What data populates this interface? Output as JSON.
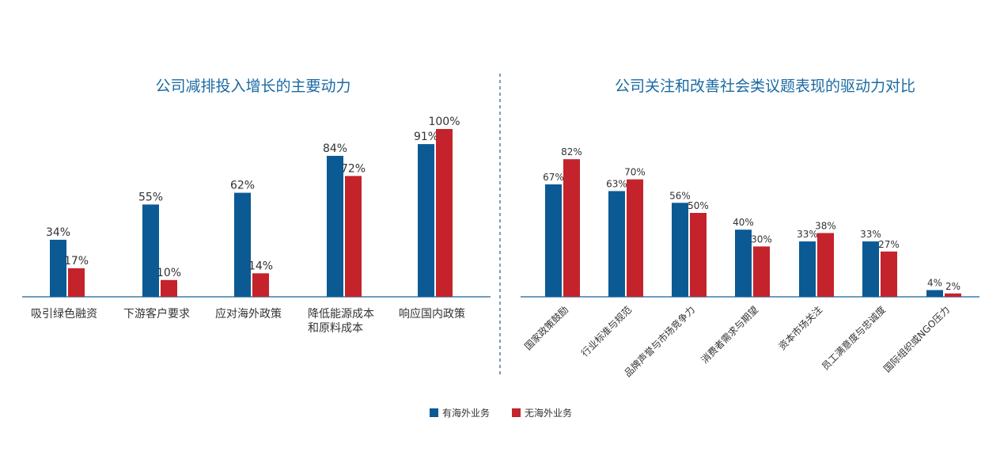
{
  "chart_data": [
    {
      "type": "bar",
      "title": "公司减排投入增长的主要动力",
      "categories": [
        "吸引绿色融资",
        "下游客户要求",
        "应对海外政策",
        "降低能源成本和原料成本",
        "响应国内政策"
      ],
      "ylim": [
        0,
        100
      ],
      "series": [
        {
          "name": "有海外业务",
          "color": "#0b5a94",
          "values": [
            34,
            55,
            62,
            84,
            91
          ],
          "value_labels": [
            "34%",
            "55%",
            "62%",
            "84%",
            "91%"
          ]
        },
        {
          "name": "无海外业务",
          "color": "#c4232b",
          "values": [
            17,
            10,
            14,
            72,
            100
          ],
          "value_labels": [
            "17%",
            "10%",
            "14%",
            "72%",
            "100%"
          ]
        }
      ]
    },
    {
      "type": "bar",
      "title": "公司关注和改善社会类议题表现的驱动力对比",
      "categories": [
        "国家政策鼓励",
        "行业标准与规范",
        "品牌声誉与市场竞争力",
        "消费者需求与期望",
        "资本市场关注",
        "员工满意度与忠诚度",
        "国际组织或NGO压力"
      ],
      "ylim": [
        0,
        100
      ],
      "series": [
        {
          "color": "#0b5a94",
          "values": [
            67,
            63,
            56,
            40,
            33,
            33,
            4
          ],
          "value_labels": [
            "67%",
            "63%",
            "56%",
            "40%",
            "33%",
            "33%",
            "4%"
          ]
        },
        {
          "color": "#c4232b",
          "values": [
            82,
            70,
            50,
            30,
            38,
            27,
            2
          ],
          "value_labels": [
            "82%",
            "70%",
            "50%",
            "30%",
            "38%",
            "27%",
            "2%"
          ]
        }
      ]
    }
  ]
}
